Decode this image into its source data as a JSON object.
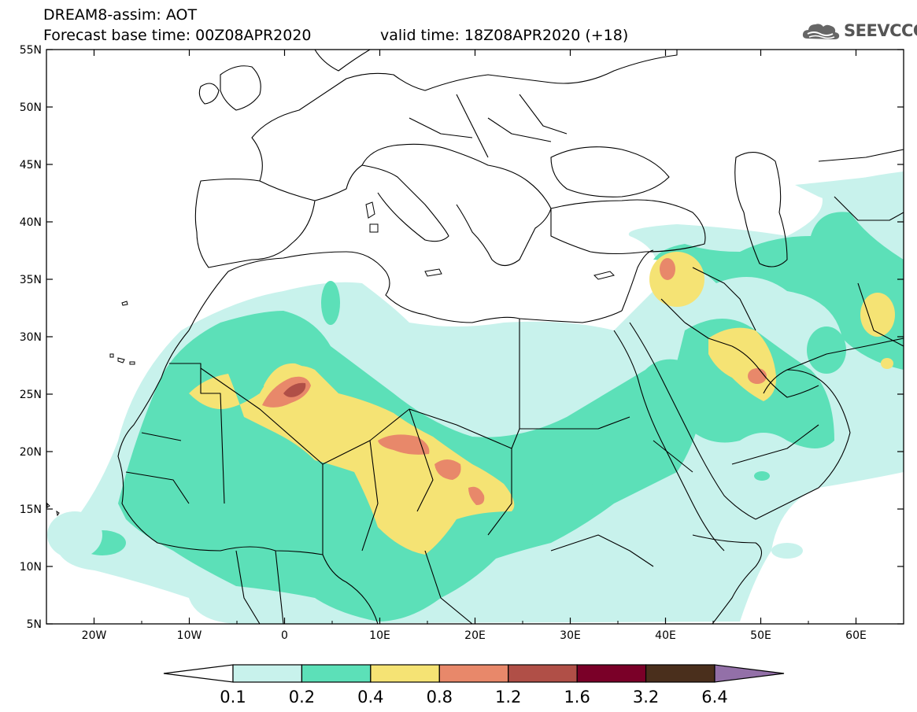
{
  "title": {
    "line1": "DREAM8-assim: AOT",
    "base_time": "Forecast base time: 00Z08APR2020",
    "valid_time": "valid time: 18Z08APR2020 (+18)"
  },
  "logo": {
    "text": "SEEVCCC",
    "icon": "cloud-icon"
  },
  "map": {
    "lat_labels": [
      "55N",
      "50N",
      "45N",
      "40N",
      "35N",
      "30N",
      "25N",
      "20N",
      "15N",
      "10N",
      "5N"
    ],
    "lon_labels": [
      "20W",
      "10W",
      "0",
      "10E",
      "20E",
      "30E",
      "40E",
      "50E",
      "60E"
    ],
    "lat_range": [
      5,
      55
    ],
    "lon_range": [
      -25,
      65
    ]
  },
  "colorbar": {
    "labels": [
      "0.1",
      "0.2",
      "0.4",
      "0.8",
      "1.2",
      "1.6",
      "3.2",
      "6.4"
    ],
    "colors": [
      "#c8f2ec",
      "#5ce0b8",
      "#f5e374",
      "#e8886a",
      "#b04f47",
      "#7a0028",
      "#4a2f1c"
    ],
    "under_color": "#ffffff",
    "over_color": "#9370a8"
  },
  "colors": {
    "c1": "#c8f2ec",
    "c2": "#5ce0b8",
    "c3": "#f5e374",
    "c4": "#e8886a",
    "c5": "#b04f47",
    "c6": "#7a0028"
  }
}
